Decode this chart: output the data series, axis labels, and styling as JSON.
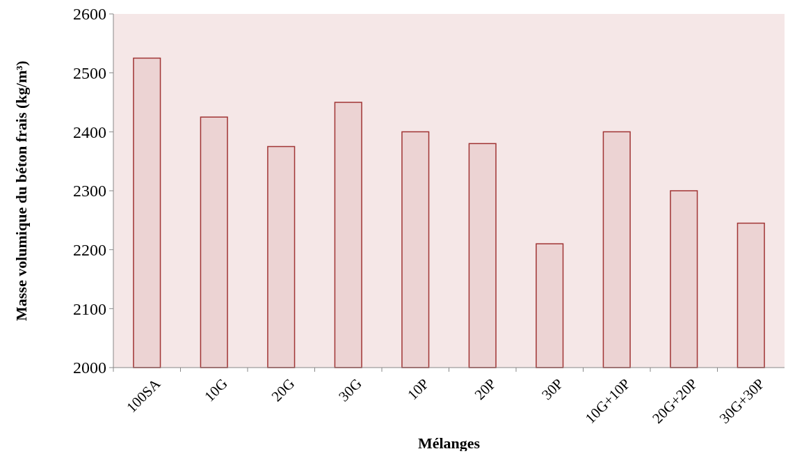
{
  "chart_data": {
    "type": "bar",
    "xlabel": "Mélanges",
    "ylabel": "Masse volumique du béton frais (kg/m³)",
    "categories": [
      "100SA",
      "10G",
      "20G",
      "30G",
      "10P",
      "20P",
      "30P",
      "10G+10P",
      "20G+20P",
      "30G+30P"
    ],
    "values": [
      2525,
      2425,
      2375,
      2450,
      2400,
      2380,
      2210,
      2400,
      2300,
      2245
    ],
    "color": "#ecd3d3",
    "ylim": [
      2000,
      2600
    ],
    "yticks": [
      2000,
      2100,
      2200,
      2300,
      2400,
      2500,
      2600
    ],
    "grid": false
  }
}
